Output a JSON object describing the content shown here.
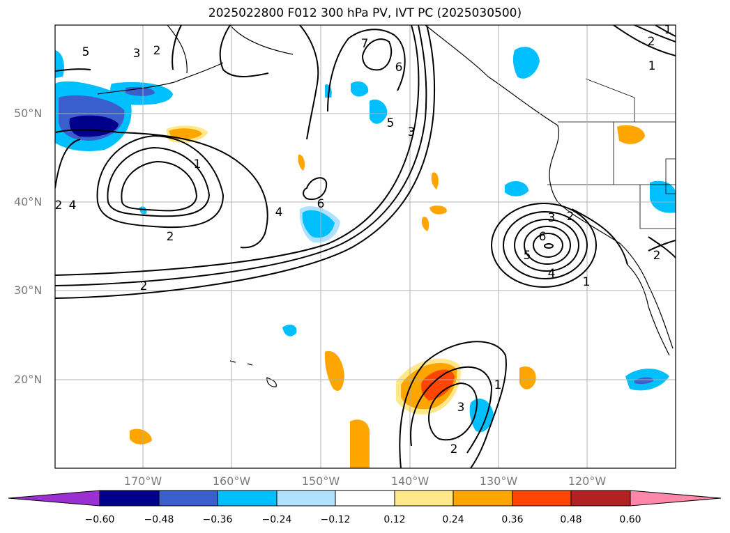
{
  "title": "2025022800 F012 300 hPa PV, IVT PC (2025030500)",
  "lat_labels": [
    "50°N",
    "40°N",
    "30°N",
    "20°N"
  ],
  "lon_labels": [
    "170°W",
    "160°W",
    "150°W",
    "140°W",
    "130°W",
    "120°W"
  ],
  "colorbar": {
    "ticks": [
      "−0.60",
      "−0.48",
      "−0.36",
      "−0.24",
      "−0.12",
      "0.12",
      "0.24",
      "0.36",
      "0.48",
      "0.60"
    ],
    "colors": [
      "#9b30d0",
      "#00008b",
      "#3a5fcd",
      "#00bfff",
      "#b0e2ff",
      "#ffffff",
      "#ffe88a",
      "#ffa500",
      "#ff4500",
      "#b22222",
      "#ff88aa"
    ]
  },
  "contour_labels": [
    "5",
    "3",
    "2",
    "1",
    "7",
    "6",
    "5",
    "3",
    "1",
    "2",
    "4",
    "6",
    "4",
    "2",
    "2",
    "3",
    "2",
    "6",
    "5",
    "4",
    "1",
    "2",
    "1",
    "3",
    "2",
    "2",
    "1"
  ]
}
